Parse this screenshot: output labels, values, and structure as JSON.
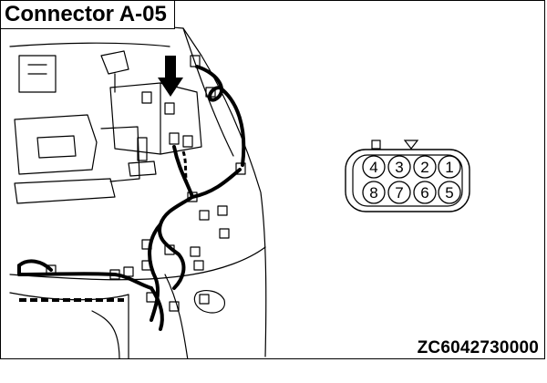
{
  "diagram": {
    "title": "Connector A-05",
    "figure_code": "ZC6042730000"
  },
  "connector": {
    "top_row": [
      "4",
      "3",
      "2",
      "1"
    ],
    "bottom_row": [
      "8",
      "7",
      "6",
      "5"
    ]
  }
}
